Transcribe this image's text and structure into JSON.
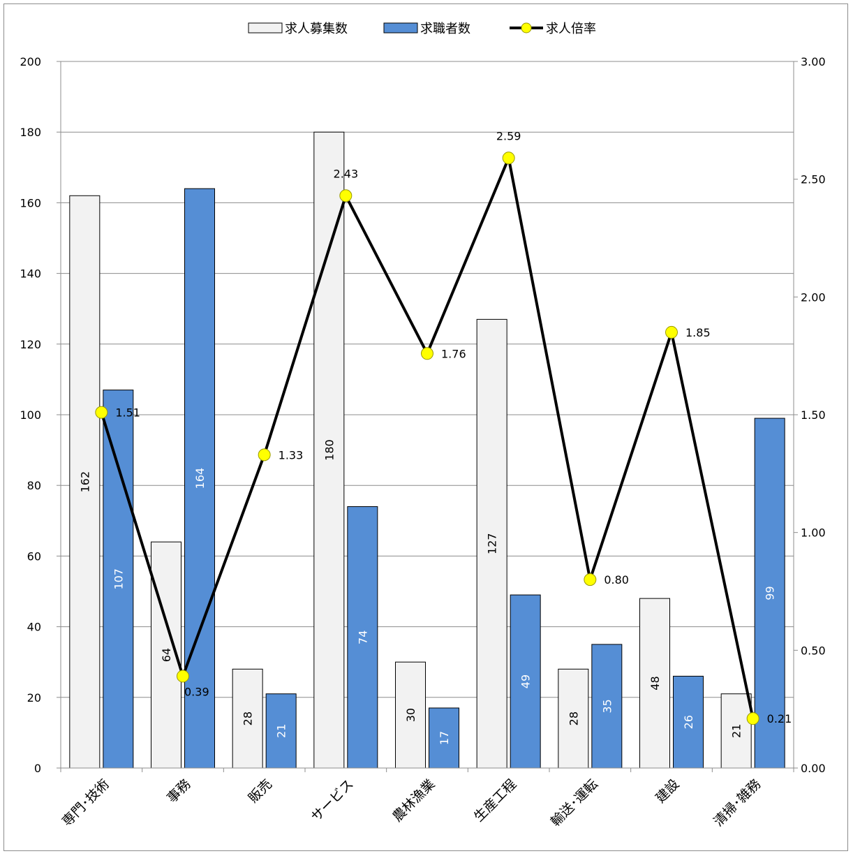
{
  "chart_data": {
    "type": "bar",
    "categories": [
      "専門･技術",
      "事務",
      "販売",
      "サービス",
      "農林漁業",
      "生産工程",
      "輸送･運転",
      "建設",
      "清掃･雑務"
    ],
    "series": [
      {
        "name": "求人募集数",
        "kind": "bar",
        "axis": "left",
        "color": "#f2f2f2",
        "label_color": "#000000",
        "values": [
          162,
          64,
          28,
          180,
          30,
          127,
          28,
          48,
          21
        ]
      },
      {
        "name": "求職者数",
        "kind": "bar",
        "axis": "left",
        "color": "#558ed5",
        "label_color": "#ffffff",
        "values": [
          107,
          164,
          21,
          74,
          17,
          49,
          35,
          26,
          99
        ]
      },
      {
        "name": "求人倍率",
        "kind": "line",
        "axis": "right",
        "color": "#000000",
        "marker_color": "#ffff00",
        "values": [
          1.51,
          0.39,
          1.33,
          2.43,
          1.76,
          2.59,
          0.8,
          1.85,
          0.21
        ],
        "labels": [
          "1.51",
          "0.39",
          "1.33",
          "2.43",
          "1.76",
          "2.59",
          "0.80",
          "1.85",
          "0.21"
        ]
      }
    ],
    "ylim": [
      0,
      200
    ],
    "y_ticks": [
      "0",
      "20",
      "40",
      "60",
      "80",
      "100",
      "120",
      "140",
      "160",
      "180",
      "200"
    ],
    "y2lim": [
      0,
      3
    ],
    "y2_ticks": [
      "0.00",
      "0.50",
      "1.00",
      "1.50",
      "2.00",
      "2.50",
      "3.00"
    ],
    "grid": true,
    "legend_position": "top-center",
    "title": "",
    "xlabel": "",
    "ylabel": ""
  }
}
